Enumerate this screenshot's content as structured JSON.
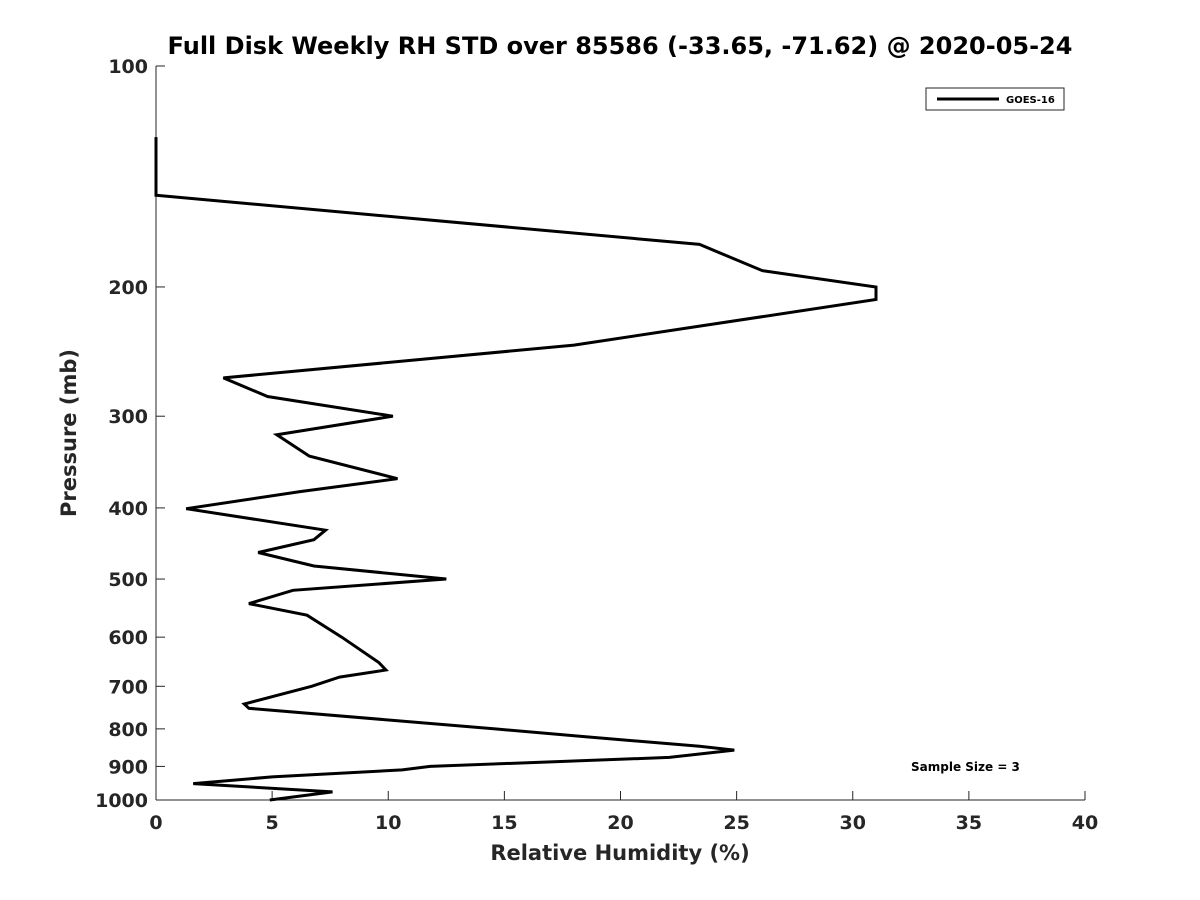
{
  "chart_data": {
    "type": "line",
    "title": "Full Disk Weekly RH STD over 85586 (-33.65, -71.62) @ 2020-05-24",
    "xlabel": "Relative Humidity (%)",
    "ylabel": "Pressure (mb)",
    "xlim": [
      0,
      40
    ],
    "ylim": [
      100,
      1000
    ],
    "y_scale": "log",
    "y_reversed": true,
    "grid": false,
    "x_ticks": [
      0,
      5,
      10,
      15,
      20,
      25,
      30,
      35,
      40
    ],
    "x_tick_labels": [
      "0",
      "5",
      "10",
      "15",
      "20",
      "25",
      "30",
      "35",
      "40"
    ],
    "y_ticks": [
      100,
      200,
      300,
      400,
      500,
      600,
      700,
      800,
      900,
      1000
    ],
    "y_tick_labels": [
      "100",
      "200",
      "300",
      "400",
      "500",
      "600",
      "700",
      "800",
      "900",
      "1000"
    ],
    "legend": {
      "position": "top-right",
      "entries": [
        "GOES-16"
      ]
    },
    "annotation": "Sample Size = 3",
    "series": [
      {
        "name": "GOES-16",
        "color": "#000000",
        "points": [
          [
            0,
            125
          ],
          [
            0,
            150
          ],
          [
            23.4,
            175
          ],
          [
            26.1,
            190
          ],
          [
            31.0,
            200
          ],
          [
            31.0,
            208
          ],
          [
            18.0,
            240
          ],
          [
            2.9,
            266
          ],
          [
            4.8,
            282
          ],
          [
            10.2,
            300
          ],
          [
            5.2,
            318
          ],
          [
            6.6,
            340
          ],
          [
            10.4,
            365
          ],
          [
            6.2,
            380
          ],
          [
            1.3,
            401
          ],
          [
            7.3,
            429
          ],
          [
            6.8,
            442
          ],
          [
            4.4,
            460
          ],
          [
            6.8,
            480
          ],
          [
            12.5,
            500
          ],
          [
            5.9,
            518
          ],
          [
            4.0,
            540
          ],
          [
            6.5,
            560
          ],
          [
            8.0,
            600
          ],
          [
            9.6,
            650
          ],
          [
            9.9,
            665
          ],
          [
            7.9,
            680
          ],
          [
            6.7,
            700
          ],
          [
            3.8,
            740
          ],
          [
            4.0,
            750
          ],
          [
            14.6,
            800
          ],
          [
            18.5,
            820
          ],
          [
            23.4,
            845
          ],
          [
            24.9,
            855
          ],
          [
            22.1,
            875
          ],
          [
            11.8,
            900
          ],
          [
            10.6,
            910
          ],
          [
            5.0,
            930
          ],
          [
            1.6,
            950
          ],
          [
            7.6,
            975
          ],
          [
            4.9,
            1000
          ]
        ]
      }
    ]
  }
}
